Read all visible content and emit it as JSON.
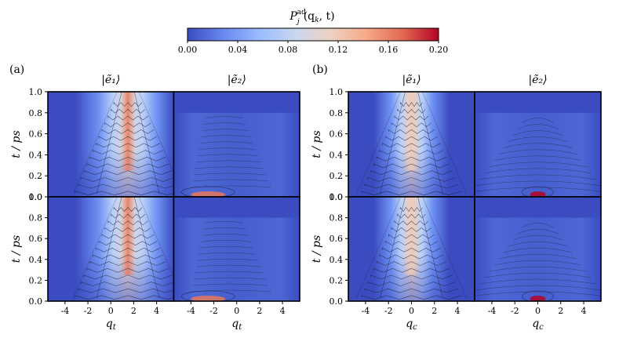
{
  "chart_data": {
    "type": "heatmap",
    "title": "P_j^ad(q_k, t)",
    "colorbar": {
      "label_main": "P",
      "label_sup": "ad",
      "label_sub": "j",
      "label_args": "(q",
      "label_args_sub": "k",
      "label_args_end": ", t)",
      "min": 0.0,
      "max": 0.2,
      "ticks": [
        "0.00",
        "0.04",
        "0.08",
        "0.12",
        "0.16",
        "0.20"
      ],
      "colors": [
        "#3b4cc0",
        "#6788ee",
        "#9abbff",
        "#c9d7f0",
        "#edd1c2",
        "#f7a889",
        "#e26952",
        "#b40426"
      ]
    },
    "panels": [
      {
        "label": "(a)",
        "xlabel_main": "q",
        "xlabel_sub": "t",
        "ylabel": "t / ps",
        "columns": [
          "|ẽ₁⟩",
          "|ẽ₂⟩"
        ],
        "xticks": [
          "-4",
          "-2",
          "0",
          "2",
          "4"
        ],
        "yticks": [
          "0.0",
          "0.2",
          "0.4",
          "0.6",
          "0.8",
          "1.0"
        ],
        "xlim": [
          -5.5,
          5.5
        ],
        "ylim": [
          0.0,
          1.0
        ]
      },
      {
        "label": "(b)",
        "xlabel_main": "q",
        "xlabel_sub": "c",
        "ylabel": "t / ps",
        "columns": [
          "|ẽ₁⟩",
          "|ẽ₂⟩"
        ],
        "xticks": [
          "-4",
          "-2",
          "0",
          "2",
          "4"
        ],
        "yticks": [
          "0.0",
          "0.2",
          "0.4",
          "0.6",
          "0.8",
          "1.0"
        ],
        "xlim": [
          -5.5,
          5.5
        ],
        "ylim": [
          0.0,
          1.0
        ]
      }
    ]
  }
}
